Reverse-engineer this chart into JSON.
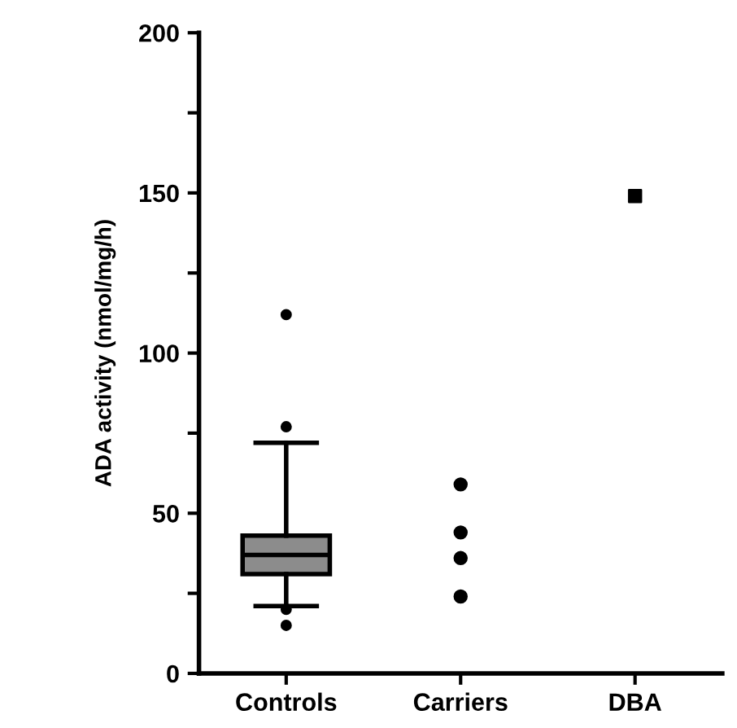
{
  "chart_data": {
    "type": "box",
    "ylabel": "ADA activity (nmol/mg/h)",
    "categories": [
      "Controls",
      "Carriers",
      "DBA"
    ],
    "ylim": [
      0,
      200
    ],
    "yticks": [
      0,
      {
        "value": 25,
        "label": null
      },
      50,
      {
        "value": 75,
        "label": null
      },
      100,
      {
        "value": 125,
        "label": null
      },
      150,
      {
        "value": 175,
        "label": null
      },
      200
    ],
    "grid": false,
    "legend": false,
    "series": [
      {
        "color": "#8c8c8c",
        "boxes": [
          {
            "low": 21,
            "q1": 31,
            "median": 37,
            "q3": 43,
            "high": 72,
            "outliers": [
              15,
              20,
              77,
              112
            ]
          },
          null,
          null
        ]
      },
      {
        "type": "scatter",
        "color": "#000000",
        "marker": "circle",
        "x": [
          "Carriers",
          "Carriers",
          "Carriers",
          "Carriers"
        ],
        "values": [
          59,
          44,
          36,
          24
        ]
      },
      {
        "type": "scatter",
        "color": "#000000",
        "marker": "square",
        "x": [
          "DBA"
        ],
        "values": [
          149
        ]
      }
    ]
  }
}
